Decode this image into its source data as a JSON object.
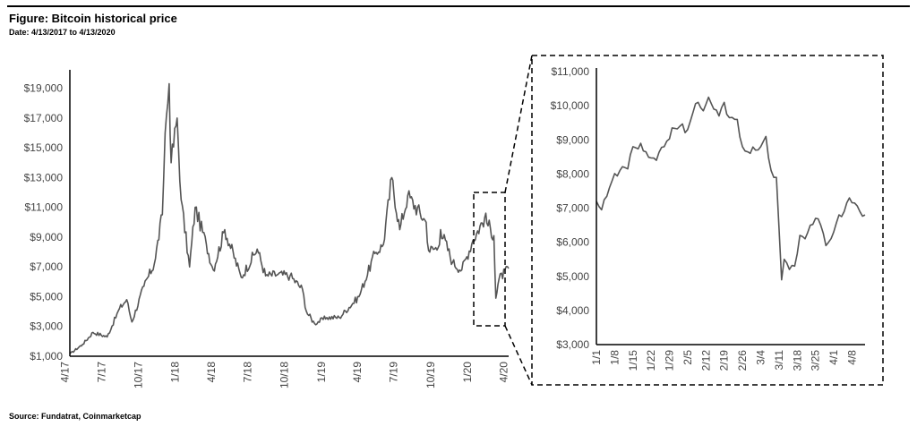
{
  "header": {
    "title": "Figure: Bitcoin historical price",
    "subtitle": "Date: 4/13/2017 to 4/13/2020"
  },
  "footer": {
    "source": "Source: Fundatrat, Coinmarketcap"
  },
  "colors": {
    "line": "#555555",
    "axis": "#000000",
    "tick_text": "#444444"
  },
  "chart_data": [
    {
      "type": "line",
      "title": "",
      "xlabel": "",
      "ylabel": "",
      "ylim": [
        1000,
        20000
      ],
      "yticks": [
        "$1,000",
        "$3,000",
        "$5,000",
        "$7,000",
        "$9,000",
        "$11,000",
        "$13,000",
        "$15,000",
        "$17,000",
        "$19,000"
      ],
      "ytick_values": [
        1000,
        3000,
        5000,
        7000,
        9000,
        11000,
        13000,
        15000,
        17000,
        19000
      ],
      "x_range": [
        "2017-04-13",
        "2020-04-13"
      ],
      "xticks": [
        "4/17",
        "7/17",
        "10/17",
        "1/18",
        "4/18",
        "7/18",
        "10/18",
        "1/19",
        "4/19",
        "7/19",
        "10/19",
        "1/20",
        "4/20"
      ],
      "xtick_dates": [
        "2017-04-01",
        "2017-07-01",
        "2017-10-01",
        "2018-01-01",
        "2018-04-01",
        "2018-07-01",
        "2018-10-01",
        "2019-01-01",
        "2019-04-01",
        "2019-07-01",
        "2019-10-01",
        "2020-01-01",
        "2020-04-01"
      ],
      "grid": false,
      "series": [
        {
          "x": [
            "2017-04-13",
            "2017-05-15",
            "2017-06-10",
            "2017-07-15",
            "2017-08-15",
            "2017-09-02",
            "2017-09-15",
            "2017-10-15",
            "2017-11-10",
            "2017-11-30",
            "2017-12-07",
            "2017-12-17",
            "2017-12-22",
            "2018-01-06",
            "2018-01-16",
            "2018-02-06",
            "2018-02-20",
            "2018-03-20",
            "2018-04-06",
            "2018-05-05",
            "2018-06-15",
            "2018-07-25",
            "2018-08-15",
            "2018-09-15",
            "2018-10-15",
            "2018-11-15",
            "2018-11-25",
            "2018-12-15",
            "2019-01-15",
            "2019-02-15",
            "2019-04-05",
            "2019-05-15",
            "2019-06-05",
            "2019-06-26",
            "2019-07-16",
            "2019-08-05",
            "2019-09-20",
            "2019-09-26",
            "2019-10-20",
            "2019-10-26",
            "2019-11-25",
            "2019-12-18",
            "2020-01-15",
            "2020-02-13",
            "2020-03-07",
            "2020-03-12",
            "2020-03-20",
            "2020-04-13"
          ],
          "values": [
            1150,
            1800,
            2600,
            2300,
            4200,
            4800,
            3300,
            5700,
            7200,
            10500,
            16000,
            19300,
            14000,
            17000,
            11500,
            7000,
            11000,
            8500,
            6800,
            9500,
            6300,
            8200,
            6400,
            6500,
            6400,
            5500,
            4000,
            3200,
            3600,
            3600,
            5000,
            7900,
            8500,
            13000,
            9500,
            11800,
            10000,
            8100,
            8300,
            9500,
            7300,
            6800,
            8800,
            10300,
            9100,
            4900,
            6200,
            6900
          ]
        }
      ]
    },
    {
      "type": "line",
      "title": "",
      "xlabel": "",
      "ylabel": "",
      "ylim": [
        3000,
        11000
      ],
      "yticks": [
        "$3,000",
        "$4,000",
        "$5,000",
        "$6,000",
        "$7,000",
        "$8,000",
        "$9,000",
        "$10,000",
        "$11,000"
      ],
      "ytick_values": [
        3000,
        4000,
        5000,
        6000,
        7000,
        8000,
        9000,
        10000,
        11000
      ],
      "x_range": [
        "2020-01-01",
        "2020-04-13"
      ],
      "xticks": [
        "1/1",
        "1/8",
        "1/15",
        "1/22",
        "1/29",
        "2/5",
        "2/12",
        "2/19",
        "2/26",
        "3/4",
        "3/11",
        "3/18",
        "3/25",
        "4/1",
        "4/8"
      ],
      "xtick_dates": [
        "2020-01-01",
        "2020-01-08",
        "2020-01-15",
        "2020-01-22",
        "2020-01-29",
        "2020-02-05",
        "2020-02-12",
        "2020-02-19",
        "2020-02-26",
        "2020-03-04",
        "2020-03-11",
        "2020-03-18",
        "2020-03-25",
        "2020-04-01",
        "2020-04-08"
      ],
      "grid": false,
      "series": [
        {
          "x": [
            "2020-01-01",
            "2020-01-03",
            "2020-01-05",
            "2020-01-07",
            "2020-01-10",
            "2020-01-13",
            "2020-01-15",
            "2020-01-18",
            "2020-01-20",
            "2020-01-24",
            "2020-01-27",
            "2020-01-30",
            "2020-02-02",
            "2020-02-05",
            "2020-02-07",
            "2020-02-09",
            "2020-02-11",
            "2020-02-13",
            "2020-02-15",
            "2020-02-17",
            "2020-02-19",
            "2020-02-21",
            "2020-02-24",
            "2020-02-26",
            "2020-02-28",
            "2020-03-02",
            "2020-03-04",
            "2020-03-06",
            "2020-03-08",
            "2020-03-10",
            "2020-03-12",
            "2020-03-13",
            "2020-03-15",
            "2020-03-17",
            "2020-03-19",
            "2020-03-21",
            "2020-03-23",
            "2020-03-25",
            "2020-03-27",
            "2020-03-29",
            "2020-04-01",
            "2020-04-03",
            "2020-04-05",
            "2020-04-07",
            "2020-04-09",
            "2020-04-11",
            "2020-04-13"
          ],
          "values": [
            7200,
            6950,
            7350,
            7800,
            8100,
            8150,
            8800,
            8900,
            8650,
            8400,
            8800,
            9350,
            9400,
            9300,
            9800,
            10100,
            9850,
            10250,
            9900,
            9700,
            10100,
            9650,
            9600,
            8800,
            8650,
            8700,
            8800,
            9100,
            8100,
            7900,
            4900,
            5500,
            5200,
            5300,
            6200,
            6100,
            6500,
            6700,
            6500,
            5900,
            6300,
            6800,
            6900,
            7300,
            7150,
            6900,
            6800
          ]
        }
      ]
    }
  ]
}
